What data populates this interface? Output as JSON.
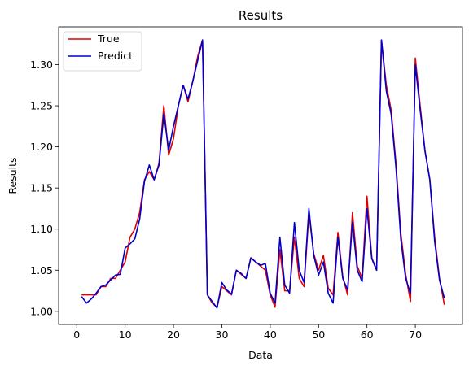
{
  "chart_data": {
    "type": "line",
    "title": "Results",
    "xlabel": "Data",
    "ylabel": "Results",
    "xlim": [
      -3.75,
      79.75
    ],
    "ylim": [
      0.984,
      1.346
    ],
    "xticks": [
      0,
      10,
      20,
      30,
      40,
      50,
      60,
      70
    ],
    "yticks": [
      1.0,
      1.05,
      1.1,
      1.15,
      1.2,
      1.25,
      1.3
    ],
    "ytick_labels": [
      "1.00",
      "1.05",
      "1.10",
      "1.15",
      "1.20",
      "1.25",
      "1.30"
    ],
    "grid": false,
    "legend": "top-left",
    "x": [
      1,
      2,
      3,
      4,
      5,
      6,
      7,
      8,
      9,
      10,
      11,
      12,
      13,
      14,
      15,
      16,
      17,
      18,
      19,
      20,
      21,
      22,
      23,
      24,
      25,
      26,
      27,
      28,
      29,
      30,
      31,
      32,
      33,
      34,
      35,
      36,
      37,
      38,
      39,
      40,
      41,
      42,
      43,
      44,
      45,
      46,
      47,
      48,
      49,
      50,
      51,
      52,
      53,
      54,
      55,
      56,
      57,
      58,
      59,
      60,
      61,
      62,
      63,
      64,
      65,
      66,
      67,
      68,
      69,
      70,
      71,
      72,
      73,
      74,
      75,
      76
    ],
    "series": [
      {
        "name": "True",
        "color": "#e00000",
        "values": [
          1.02,
          1.02,
          1.02,
          1.02,
          1.03,
          1.03,
          1.04,
          1.04,
          1.05,
          1.06,
          1.09,
          1.1,
          1.12,
          1.16,
          1.17,
          1.16,
          1.18,
          1.25,
          1.19,
          1.21,
          1.25,
          1.275,
          1.255,
          1.28,
          1.31,
          1.33,
          1.02,
          1.01,
          1.005,
          1.03,
          1.025,
          1.02,
          1.05,
          1.045,
          1.04,
          1.065,
          1.06,
          1.055,
          1.05,
          1.02,
          1.005,
          1.075,
          1.025,
          1.025,
          1.09,
          1.04,
          1.03,
          1.12,
          1.07,
          1.05,
          1.068,
          1.028,
          1.02,
          1.096,
          1.042,
          1.02,
          1.12,
          1.055,
          1.04,
          1.14,
          1.065,
          1.05,
          1.33,
          1.275,
          1.245,
          1.18,
          1.095,
          1.045,
          1.012,
          1.308,
          1.25,
          1.195,
          1.16,
          1.09,
          1.04,
          1.008
        ]
      },
      {
        "name": "Predict",
        "color": "#0000cc",
        "values": [
          1.018,
          1.01,
          1.015,
          1.022,
          1.03,
          1.032,
          1.038,
          1.044,
          1.045,
          1.077,
          1.082,
          1.088,
          1.112,
          1.158,
          1.178,
          1.16,
          1.178,
          1.24,
          1.196,
          1.225,
          1.25,
          1.275,
          1.258,
          1.28,
          1.305,
          1.33,
          1.02,
          1.012,
          1.004,
          1.035,
          1.026,
          1.021,
          1.05,
          1.046,
          1.04,
          1.065,
          1.06,
          1.056,
          1.058,
          1.022,
          1.01,
          1.09,
          1.032,
          1.022,
          1.108,
          1.05,
          1.035,
          1.125,
          1.068,
          1.044,
          1.06,
          1.022,
          1.01,
          1.09,
          1.04,
          1.026,
          1.108,
          1.05,
          1.036,
          1.125,
          1.064,
          1.05,
          1.33,
          1.268,
          1.24,
          1.175,
          1.088,
          1.04,
          1.022,
          1.3,
          1.245,
          1.195,
          1.16,
          1.085,
          1.038,
          1.016
        ]
      }
    ]
  }
}
